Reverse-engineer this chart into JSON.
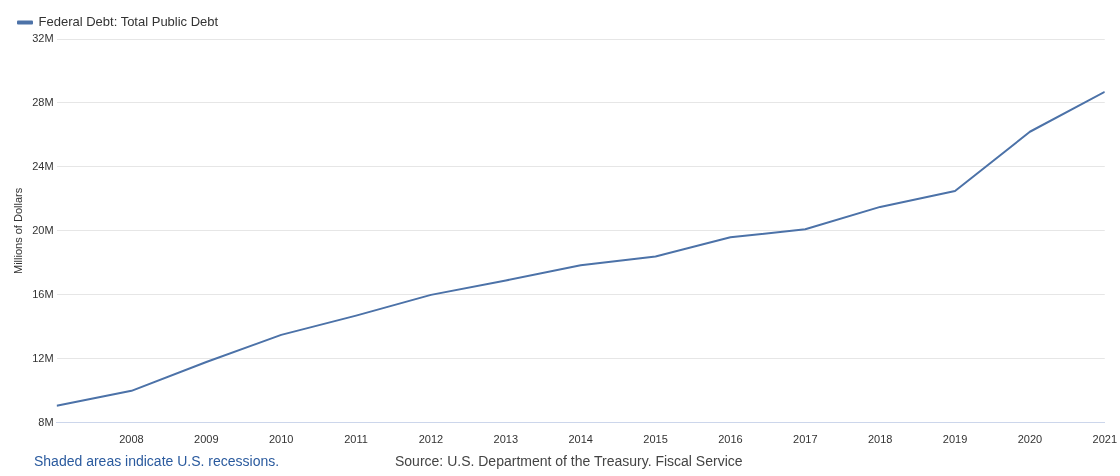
{
  "chart_data": {
    "type": "line",
    "ylabel": "Millions of Dollars",
    "legend": "top left",
    "grid": "y",
    "marker": "none",
    "line_style": "solid",
    "x": [
      2007,
      2008,
      2009,
      2010,
      2011,
      2012,
      2013,
      2014,
      2015,
      2016,
      2017,
      2018,
      2019,
      2020,
      2021
    ],
    "series": [
      {
        "name": "Federal Debt: Total Public Debt",
        "color": "#4c72a8",
        "values": [
          9070000,
          10000000,
          11800000,
          13500000,
          14700000,
          16000000,
          16900000,
          17850000,
          18400000,
          19600000,
          20100000,
          21500000,
          22500000,
          26200000,
          28700000
        ]
      }
    ],
    "xlim": [
      2007,
      2021
    ],
    "xticks": [
      2008,
      2009,
      2010,
      2011,
      2012,
      2013,
      2014,
      2015,
      2016,
      2017,
      2018,
      2019,
      2020,
      2021
    ],
    "ylim": [
      8000000,
      32000000
    ],
    "yticks": [
      {
        "value": 8000000,
        "label": "8M"
      },
      {
        "value": 12000000,
        "label": "12M"
      },
      {
        "value": 16000000,
        "label": "16M"
      },
      {
        "value": 20000000,
        "label": "20M"
      },
      {
        "value": 24000000,
        "label": "24M"
      },
      {
        "value": 28000000,
        "label": "28M"
      },
      {
        "value": 32000000,
        "label": "32M"
      }
    ],
    "annotations": [
      "Shaded areas indicate U.S. recessions.",
      "Source: U.S. Department of the Treasury. Fiscal Service"
    ]
  }
}
